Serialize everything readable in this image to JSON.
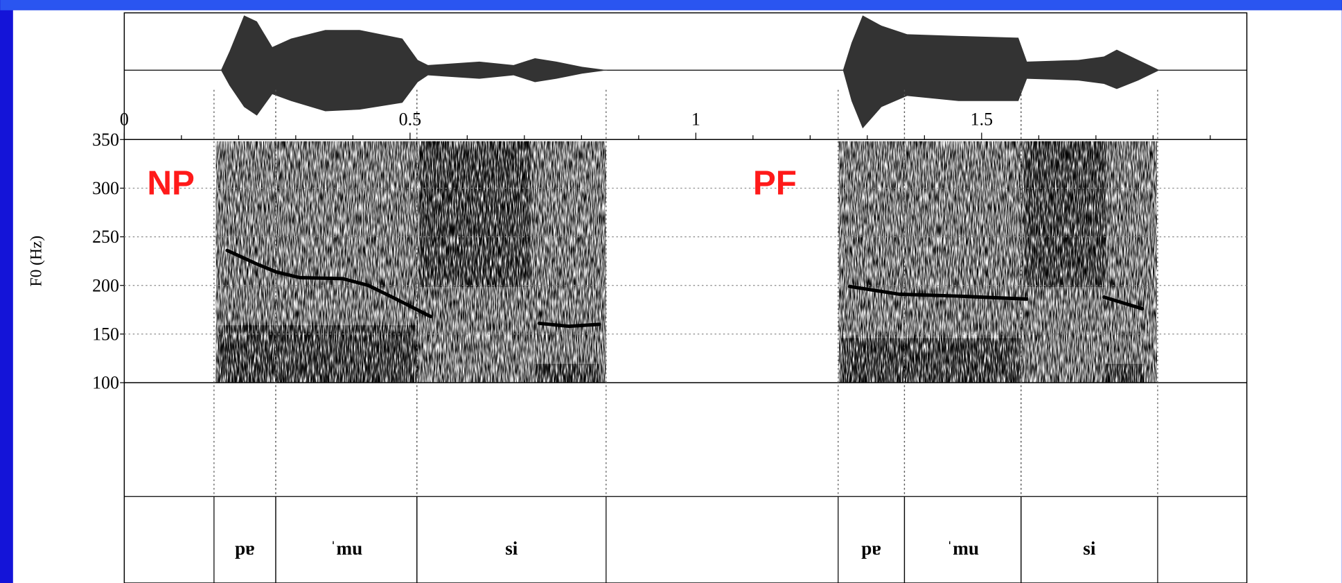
{
  "chart_data": {
    "type": "line",
    "ylabel": "F0 (Hz)",
    "annotations": [
      {
        "text": "NP",
        "x": 0.04,
        "y": 305
      },
      {
        "text": "PF",
        "x": 1.1,
        "y": 305
      }
    ],
    "xlim": [
      0,
      1.964
    ],
    "xticks": [
      0,
      0.5,
      1,
      1.5
    ],
    "xminorticks": [
      0.1,
      0.2,
      0.3,
      0.4,
      0.6,
      0.7,
      0.8,
      0.9,
      1.1,
      1.2,
      1.3,
      1.4,
      1.6,
      1.7,
      1.8,
      1.9
    ],
    "ylim": [
      100,
      350
    ],
    "yticks": [
      100,
      150,
      200,
      250,
      300,
      350
    ],
    "grid": true,
    "series": [
      {
        "color": "#000000",
        "x": [
          0.18,
          0.232,
          0.265,
          0.307,
          0.382,
          0.427,
          0.472,
          0.536
        ],
        "values": [
          236,
          222,
          214,
          208,
          207,
          200,
          187,
          168
        ]
      },
      {
        "color": "#000000",
        "x": [
          0.726,
          0.778,
          0.831
        ],
        "values": [
          161,
          158,
          160
        ]
      },
      {
        "color": "#000000",
        "x": [
          1.269,
          1.355,
          1.46,
          1.579
        ],
        "values": [
          199,
          191,
          189,
          186
        ]
      },
      {
        "color": "#000000",
        "x": [
          1.714,
          1.781
        ],
        "values": [
          188,
          176
        ]
      }
    ],
    "segments": [
      {
        "label": "pɐ",
        "start": 0.157,
        "end": 0.265
      },
      {
        "label": "ˈmu",
        "start": 0.265,
        "end": 0.512
      },
      {
        "label": "si",
        "start": 0.512,
        "end": 0.843
      },
      {
        "label": "pɐ",
        "start": 1.249,
        "end": 1.365
      },
      {
        "label": "ˈmu",
        "start": 1.365,
        "end": 1.569
      },
      {
        "label": "si",
        "start": 1.569,
        "end": 1.808
      }
    ]
  }
}
